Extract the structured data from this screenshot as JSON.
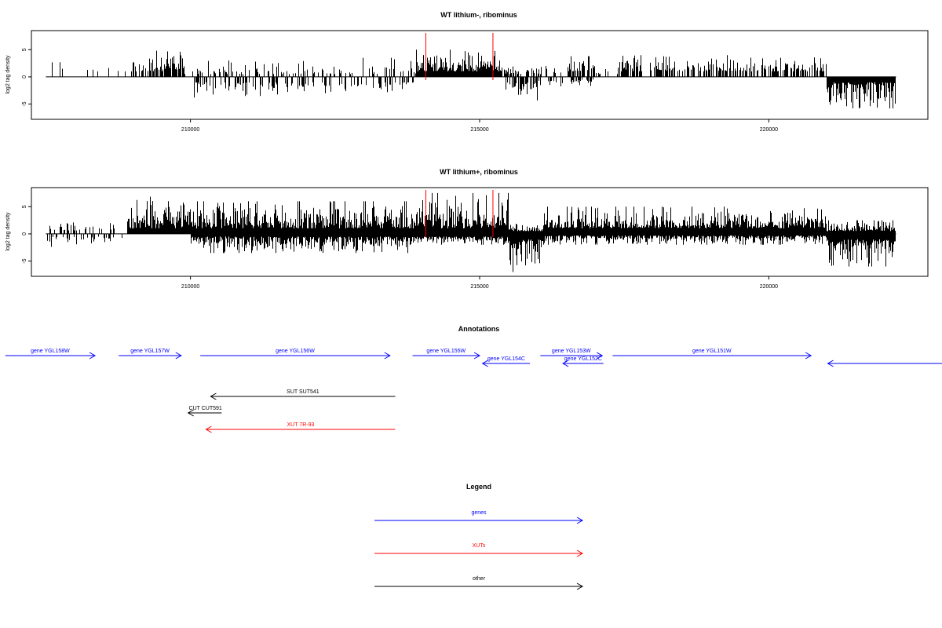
{
  "colors": {
    "gene": "#0000ff",
    "xut": "#ff0000",
    "other": "#000000",
    "marker": "#ff0000"
  },
  "chart_data": [
    {
      "type": "bar",
      "title": "WT lithium-, ribominus",
      "ylabel": "log2 tag density",
      "xlim": [
        207250,
        222750
      ],
      "ylim": [
        -7.8,
        8.5
      ],
      "x_ticks": [
        210000,
        215000,
        220000
      ],
      "y_ticks": [
        5,
        0,
        -5
      ],
      "markers_x": [
        214070,
        215230
      ],
      "segments": [
        {
          "start": 207500,
          "end": 207900,
          "density": 0.15,
          "plus": [
            1,
            3.5
          ],
          "minus": [
            0,
            0
          ]
        },
        {
          "start": 207900,
          "end": 208900,
          "density": 0.06,
          "plus": [
            1,
            3
          ],
          "minus": [
            0,
            0
          ]
        },
        {
          "start": 208900,
          "end": 209300,
          "density": 0.5,
          "plus": [
            1,
            3.6
          ],
          "minus": [
            0,
            0
          ]
        },
        {
          "start": 209300,
          "end": 209900,
          "density": 0.8,
          "plus": [
            1,
            5
          ],
          "minus": [
            0,
            0
          ]
        },
        {
          "start": 209900,
          "end": 210400,
          "density": 0.35,
          "plus": [
            0.5,
            3.5
          ],
          "minus": [
            1,
            3.8
          ]
        },
        {
          "start": 210400,
          "end": 212200,
          "density": 0.35,
          "plus": [
            0.5,
            3
          ],
          "minus": [
            1,
            3.5
          ]
        },
        {
          "start": 212200,
          "end": 213900,
          "density": 0.25,
          "plus": [
            0.5,
            3.5
          ],
          "minus": [
            1,
            3
          ]
        },
        {
          "start": 213900,
          "end": 215400,
          "density": 1,
          "plus": [
            1,
            5
          ],
          "minus": [
            0,
            0
          ]
        },
        {
          "start": 215400,
          "end": 216000,
          "density": 0.5,
          "plus": [
            0.5,
            2
          ],
          "minus": [
            1,
            4.8
          ]
        },
        {
          "start": 216000,
          "end": 216500,
          "density": 0.3,
          "plus": [
            0.5,
            2
          ],
          "minus": [
            0.5,
            2
          ]
        },
        {
          "start": 216500,
          "end": 217000,
          "density": 0.6,
          "plus": [
            1,
            3.8
          ],
          "minus": [
            0.5,
            2
          ]
        },
        {
          "start": 217000,
          "end": 217400,
          "density": 0.2,
          "plus": [
            0.5,
            2
          ],
          "minus": [
            0,
            0
          ]
        },
        {
          "start": 217400,
          "end": 221000,
          "density": 0.6,
          "plus": [
            1,
            4
          ],
          "minus": [
            0,
            0
          ]
        },
        {
          "start": 221000,
          "end": 222200,
          "density": 1,
          "plus": [
            0,
            0
          ],
          "minus": [
            1,
            5.8
          ]
        }
      ]
    },
    {
      "type": "bar",
      "title": "WT lithium+, ribominus",
      "ylabel": "log2 tag density",
      "xlim": [
        207250,
        222750
      ],
      "ylim": [
        -7.8,
        8.5
      ],
      "x_ticks": [
        210000,
        215000,
        220000
      ],
      "y_ticks": [
        5,
        0,
        -5
      ],
      "markers_x": [
        214070,
        215230
      ],
      "segments": [
        {
          "start": 207500,
          "end": 208400,
          "density": 0.35,
          "plus": [
            0.5,
            2.8
          ],
          "minus": [
            0.5,
            2.5
          ]
        },
        {
          "start": 208400,
          "end": 208900,
          "density": 0.2,
          "plus": [
            0.5,
            2
          ],
          "minus": [
            0.5,
            1.5
          ]
        },
        {
          "start": 208900,
          "end": 210000,
          "density": 1,
          "plus": [
            1,
            7
          ],
          "minus": [
            0,
            0
          ]
        },
        {
          "start": 210000,
          "end": 213900,
          "density": 1,
          "plus": [
            1,
            6
          ],
          "minus": [
            0.5,
            3.5
          ]
        },
        {
          "start": 213900,
          "end": 215500,
          "density": 1,
          "plus": [
            1,
            7.5
          ],
          "minus": [
            0.5,
            2
          ]
        },
        {
          "start": 215500,
          "end": 216100,
          "density": 1,
          "plus": [
            0.5,
            2
          ],
          "minus": [
            1,
            7
          ]
        },
        {
          "start": 216100,
          "end": 221000,
          "density": 1,
          "plus": [
            1,
            5
          ],
          "minus": [
            0.3,
            2
          ]
        },
        {
          "start": 221000,
          "end": 222200,
          "density": 1,
          "plus": [
            0.5,
            2.5
          ],
          "minus": [
            1,
            6
          ]
        }
      ]
    }
  ],
  "annotations": {
    "title": "Annotations",
    "xlim": [
      207250,
      222750
    ],
    "rows": [
      {
        "label": "gene YGL158W",
        "kind": "gene",
        "start": 206800,
        "end": 208350,
        "strand": "+",
        "row": 0
      },
      {
        "label": "gene YGL157W",
        "kind": "gene",
        "start": 208760,
        "end": 209840,
        "strand": "+",
        "row": 0
      },
      {
        "label": "gene YGL156W",
        "kind": "gene",
        "start": 210170,
        "end": 213450,
        "strand": "+",
        "row": 0
      },
      {
        "label": "gene YGL155W",
        "kind": "gene",
        "start": 213840,
        "end": 215000,
        "strand": "+",
        "row": 0
      },
      {
        "label": "gene YGL154C",
        "kind": "gene",
        "start": 215050,
        "end": 215870,
        "strand": "-",
        "row": 1
      },
      {
        "label": "gene YGL153W",
        "kind": "gene",
        "start": 216050,
        "end": 217120,
        "strand": "+",
        "row": 0
      },
      {
        "label": "gene YGL152C",
        "kind": "gene",
        "start": 216440,
        "end": 217140,
        "strand": "-",
        "row": 1
      },
      {
        "label": "gene YGL151W",
        "kind": "gene",
        "start": 217300,
        "end": 220730,
        "strand": "+",
        "row": 0
      },
      {
        "label": "",
        "kind": "gene",
        "start": 221020,
        "end": 223500,
        "strand": "-",
        "row": 1
      },
      {
        "label": "SUT SUT541",
        "kind": "other",
        "start": 210350,
        "end": 213540,
        "strand": "-",
        "row": 3
      },
      {
        "label": "CUT CUT591",
        "kind": "other",
        "start": 209960,
        "end": 210540,
        "strand": "-",
        "row": 4
      },
      {
        "label": "XUT 7R-93",
        "kind": "xut",
        "start": 210270,
        "end": 213540,
        "strand": "-",
        "row": 5
      }
    ]
  },
  "legend": {
    "title": "Legend",
    "items": [
      {
        "label": "genes",
        "kind": "gene"
      },
      {
        "label": "XUTs",
        "kind": "xut"
      },
      {
        "label": "other",
        "kind": "other"
      }
    ]
  }
}
